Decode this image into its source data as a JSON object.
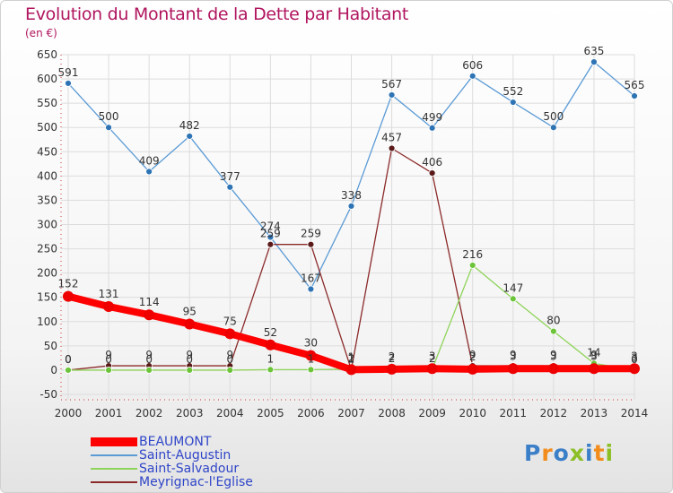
{
  "header": {
    "title": "Evolution du Montant de la Dette par Habitant",
    "unit": "(en €)"
  },
  "logo": {
    "text": "Proxiti",
    "colors": [
      "#3b7fc8",
      "#f28c1c",
      "#3b7fc8",
      "#8cbf26",
      "#3b7fc8",
      "#f28c1c",
      "#8cbf26"
    ]
  },
  "chart_data": {
    "type": "line",
    "x": [
      "2000",
      "2001",
      "2002",
      "2003",
      "2004",
      "2005",
      "2006",
      "2007",
      "2008",
      "2009",
      "2010",
      "2011",
      "2012",
      "2013",
      "2014"
    ],
    "ylim": [
      -50,
      650
    ],
    "yticks": [
      -50,
      0,
      50,
      100,
      150,
      200,
      250,
      300,
      350,
      400,
      450,
      500,
      550,
      600,
      650
    ],
    "grid": true,
    "legend_position": "bottom-left",
    "series": [
      {
        "name": "Saint-Augustin",
        "color": "#5b9bd5",
        "marker_color": "#2e74b5",
        "values": [
          591,
          500,
          409,
          482,
          377,
          274,
          167,
          338,
          567,
          499,
          606,
          552,
          500,
          635,
          565
        ],
        "labels": [
          "591",
          "500",
          "409",
          "482",
          "377",
          "274",
          "167",
          "338",
          "567",
          "499",
          "606",
          "552",
          "500",
          "635",
          "565"
        ]
      },
      {
        "name": "Meyrignac-l'Eglise",
        "color": "#8b2a2a",
        "marker_color": "#5a1a1a",
        "values": [
          0,
          9,
          9,
          9,
          9,
          259,
          259,
          1,
          457,
          406,
          9,
          9,
          9,
          9,
          3
        ],
        "labels": [
          "0",
          "9",
          "9",
          "9",
          "9",
          "259",
          "259",
          "1",
          "457",
          "406",
          "9",
          "9",
          "9",
          "9",
          "3"
        ]
      },
      {
        "name": "Saint-Salvadour",
        "color": "#8fd45a",
        "marker_color": "#6cc43a",
        "values": [
          0,
          0,
          0,
          0,
          0,
          1,
          1,
          2,
          2,
          2,
          216,
          147,
          80,
          14,
          0
        ],
        "labels": [
          "0",
          "0",
          "0",
          "0",
          "0",
          "1",
          "1",
          "2",
          "2",
          "2",
          "216",
          "147",
          "80",
          "14",
          "0"
        ]
      },
      {
        "name": "BEAUMONT",
        "color": "#ff0000",
        "marker_color": "#ee0000",
        "values": [
          152,
          131,
          114,
          95,
          75,
          52,
          30,
          1,
          2,
          3,
          2,
          3,
          3,
          3,
          3
        ],
        "labels": [
          "152",
          "131",
          "114",
          "95",
          "75",
          "52",
          "30",
          "1",
          "2",
          "3",
          "2",
          "3",
          "3",
          "3",
          "3"
        ]
      }
    ],
    "legend": [
      "BEAUMONT",
      "Saint-Augustin",
      "Saint-Salvadour",
      "Meyrignac-l'Eglise"
    ]
  }
}
